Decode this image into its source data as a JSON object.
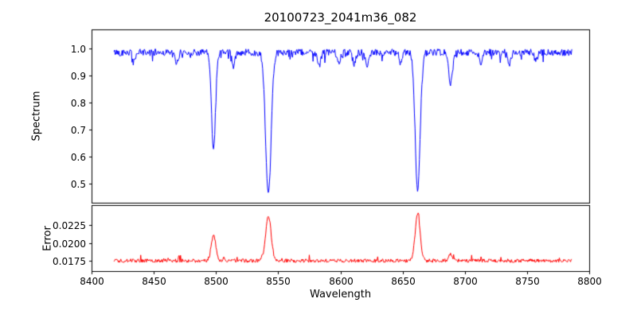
{
  "title": "20100723_2041m36_082",
  "xlabel": "Wavelength",
  "axis_color": "#000000",
  "background_color": "#ffffff",
  "xticks": {
    "values": [
      8400,
      8450,
      8500,
      8550,
      8600,
      8650,
      8700,
      8750,
      8800
    ],
    "labels": [
      "8400",
      "8450",
      "8500",
      "8550",
      "8600",
      "8650",
      "8700",
      "8750",
      "8800"
    ]
  },
  "chart_data": [
    {
      "type": "line",
      "name": "spectrum",
      "color": "#0000ff",
      "ylabel": "Spectrum",
      "xlim": [
        8400,
        8800
      ],
      "ylim": [
        0.43,
        1.07
      ],
      "ytick_values": [
        0.5,
        0.6,
        0.7,
        0.8,
        0.9,
        1.0
      ],
      "ytick_labels": [
        "0.5",
        "0.6",
        "0.7",
        "0.8",
        "0.9",
        "1.0"
      ],
      "x_start": 8418,
      "x_end": 8786,
      "x_step": 0.5,
      "continuum": 0.985,
      "noise_amplitude": 0.0125,
      "dip_probability": 0.08,
      "dip_max": 0.035,
      "absorption_lines": [
        {
          "center": 8498.0,
          "depth": 0.36,
          "sigma": 1.6
        },
        {
          "center": 8542.1,
          "depth": 0.53,
          "sigma": 2.2
        },
        {
          "center": 8662.1,
          "depth": 0.51,
          "sigma": 2.0
        },
        {
          "center": 8688.6,
          "depth": 0.115,
          "sigma": 1.6
        },
        {
          "center": 8434.0,
          "depth": 0.035,
          "sigma": 1.1
        },
        {
          "center": 8468.3,
          "depth": 0.045,
          "sigma": 1.2
        },
        {
          "center": 8514.1,
          "depth": 0.05,
          "sigma": 1.2
        },
        {
          "center": 8583.0,
          "depth": 0.05,
          "sigma": 1.3
        },
        {
          "center": 8598.8,
          "depth": 0.04,
          "sigma": 1.2
        },
        {
          "center": 8611.0,
          "depth": 0.04,
          "sigma": 1.2
        },
        {
          "center": 8621.5,
          "depth": 0.045,
          "sigma": 1.3
        },
        {
          "center": 8648.5,
          "depth": 0.04,
          "sigma": 1.1
        },
        {
          "center": 8713.0,
          "depth": 0.04,
          "sigma": 1.2
        },
        {
          "center": 8736.0,
          "depth": 0.045,
          "sigma": 1.2
        },
        {
          "center": 8757.0,
          "depth": 0.035,
          "sigma": 1.1
        }
      ],
      "grid": false
    },
    {
      "type": "line",
      "name": "error",
      "color": "#ff0000",
      "ylabel": "Error",
      "xlim": [
        8400,
        8800
      ],
      "ylim": [
        0.0161,
        0.0253
      ],
      "ytick_values": [
        0.0175,
        0.02,
        0.0225
      ],
      "ytick_labels": [
        "0.0175",
        "0.0200",
        "0.0225"
      ],
      "x_start": 8418,
      "x_end": 8786,
      "x_step": 0.5,
      "baseline": 0.01755,
      "noise_amplitude": 0.00025,
      "bump_probability": 0.05,
      "bump_max": 0.0007,
      "spikes": [
        {
          "center": 8498.0,
          "amplitude": 0.0036,
          "sigma": 1.8
        },
        {
          "center": 8542.1,
          "amplitude": 0.0063,
          "sigma": 2.2
        },
        {
          "center": 8662.1,
          "amplitude": 0.0066,
          "sigma": 2.0
        },
        {
          "center": 8688.6,
          "amplitude": 0.0009,
          "sigma": 1.6
        }
      ],
      "grid": false
    }
  ]
}
